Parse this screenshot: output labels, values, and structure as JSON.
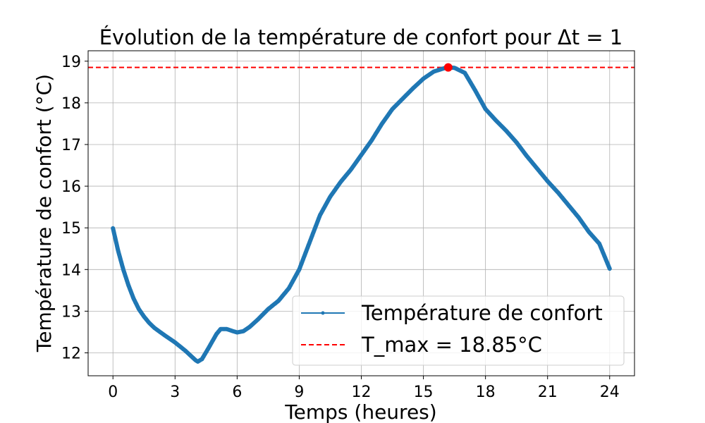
{
  "chart_data": {
    "type": "line",
    "title": "Évolution de la température de confort pour Δt = 1",
    "xlabel": "Temps (heures)",
    "ylabel": "Température de confort (°C)",
    "xlim": [
      -1.2,
      25.2
    ],
    "ylim": [
      11.45,
      19.25
    ],
    "xticks": [
      0,
      3,
      6,
      9,
      12,
      15,
      18,
      21,
      24
    ],
    "yticks": [
      12,
      13,
      14,
      15,
      16,
      17,
      18,
      19
    ],
    "grid": true,
    "legend_position": "lower-right",
    "series": [
      {
        "name": "Température de confort",
        "color": "#1f77b4",
        "marker": "dot",
        "points": [
          [
            0,
            14.99
          ],
          [
            0.25,
            14.45
          ],
          [
            0.5,
            14.0
          ],
          [
            0.75,
            13.62
          ],
          [
            1.0,
            13.3
          ],
          [
            1.25,
            13.05
          ],
          [
            1.5,
            12.87
          ],
          [
            1.75,
            12.72
          ],
          [
            2.0,
            12.6
          ],
          [
            2.5,
            12.42
          ],
          [
            3.0,
            12.25
          ],
          [
            3.5,
            12.05
          ],
          [
            4.0,
            11.82
          ],
          [
            4.1,
            11.79
          ],
          [
            4.3,
            11.85
          ],
          [
            4.6,
            12.1
          ],
          [
            5.0,
            12.45
          ],
          [
            5.2,
            12.57
          ],
          [
            5.5,
            12.57
          ],
          [
            5.8,
            12.52
          ],
          [
            6.0,
            12.49
          ],
          [
            6.3,
            12.52
          ],
          [
            6.6,
            12.62
          ],
          [
            7.0,
            12.8
          ],
          [
            7.5,
            13.05
          ],
          [
            8.0,
            13.25
          ],
          [
            8.5,
            13.55
          ],
          [
            9.0,
            14.0
          ],
          [
            9.5,
            14.65
          ],
          [
            10.0,
            15.3
          ],
          [
            10.5,
            15.75
          ],
          [
            11.0,
            16.1
          ],
          [
            11.5,
            16.4
          ],
          [
            12.0,
            16.75
          ],
          [
            12.5,
            17.1
          ],
          [
            13.0,
            17.5
          ],
          [
            13.5,
            17.85
          ],
          [
            14.0,
            18.1
          ],
          [
            14.5,
            18.35
          ],
          [
            15.0,
            18.58
          ],
          [
            15.5,
            18.75
          ],
          [
            16.0,
            18.83
          ],
          [
            16.2,
            18.85
          ],
          [
            16.5,
            18.84
          ],
          [
            17.0,
            18.72
          ],
          [
            17.5,
            18.3
          ],
          [
            18.0,
            17.85
          ],
          [
            18.5,
            17.58
          ],
          [
            19.0,
            17.33
          ],
          [
            19.5,
            17.05
          ],
          [
            20.0,
            16.72
          ],
          [
            20.5,
            16.42
          ],
          [
            21.0,
            16.12
          ],
          [
            21.5,
            15.85
          ],
          [
            22.0,
            15.55
          ],
          [
            22.5,
            15.25
          ],
          [
            23.0,
            14.9
          ],
          [
            23.5,
            14.62
          ],
          [
            24.0,
            14.02
          ]
        ]
      }
    ],
    "reference_line": {
      "name": "T_max = 18.85°C",
      "value": 18.85,
      "color": "#ff0000",
      "style": "dashed"
    },
    "max_point": {
      "x": 16.2,
      "y": 18.85,
      "color": "#ff0000"
    }
  }
}
